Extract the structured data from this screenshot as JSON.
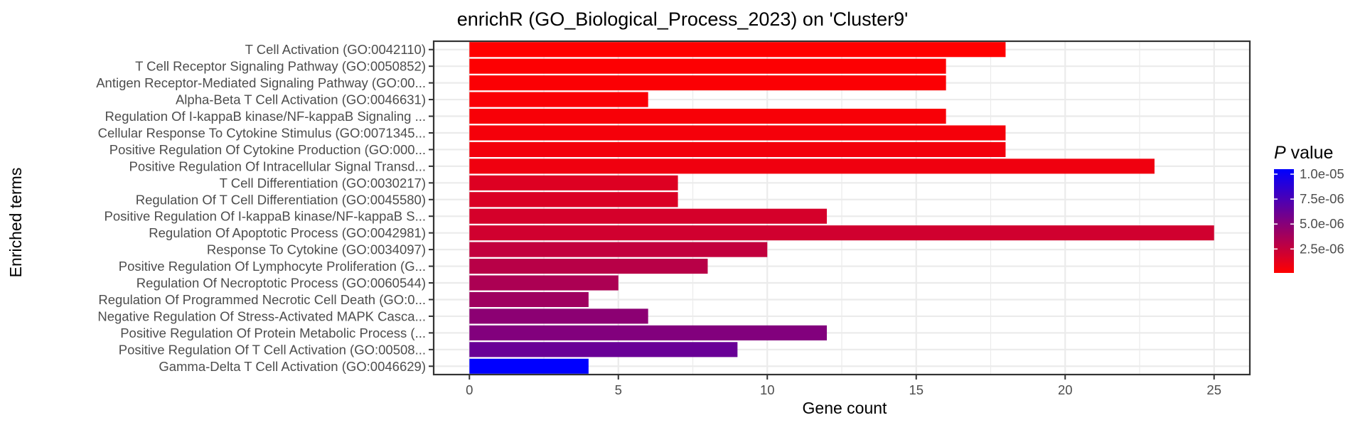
{
  "chart_data": {
    "type": "bar",
    "orientation": "horizontal",
    "title": "enrichR (GO_Biological_Process_2023) on 'Cluster9'",
    "xlabel": "Gene count",
    "ylabel": "Enriched terms",
    "xlim": [
      -1.2,
      26.2
    ],
    "xticks": [
      0,
      5,
      10,
      15,
      20,
      25
    ],
    "grid": true,
    "legend": {
      "title_italic": "P",
      "title_rest": " value",
      "position": "right",
      "labels": [
        "1.0e-05",
        "7.5e-06",
        "5.0e-06",
        "2.5e-06"
      ],
      "label_values": [
        1e-05,
        7.5e-06,
        5e-06,
        2.5e-06
      ],
      "range": [
        1e-07,
        1.05e-05
      ]
    },
    "colors": {
      "low": "#FF0000",
      "high": "#0000FF"
    },
    "categories": [
      "T Cell Activation (GO:0042110)",
      "T Cell Receptor Signaling Pathway (GO:0050852)",
      "Antigen Receptor-Mediated Signaling Pathway (GO:00...",
      "Alpha-Beta T Cell Activation (GO:0046631)",
      "Regulation Of I-kappaB kinase/NF-kappaB Signaling ...",
      "Cellular Response To Cytokine Stimulus (GO:0071345...",
      "Positive Regulation Of Cytokine Production (GO:000...",
      "Positive Regulation Of Intracellular Signal Transd...",
      "T Cell Differentiation (GO:0030217)",
      "Regulation Of T Cell Differentiation (GO:0045580)",
      "Positive Regulation Of I-kappaB kinase/NF-kappaB S...",
      "Regulation Of Apoptotic Process (GO:0042981)",
      "Response To Cytokine (GO:0034097)",
      "Positive Regulation Of Lymphocyte Proliferation (G...",
      "Regulation Of Necroptotic Process (GO:0060544)",
      "Regulation Of Programmed Necrotic Cell Death (GO:0...",
      "Negative Regulation Of Stress-Activated MAPK Casca...",
      "Positive Regulation Of Protein Metabolic Process (...",
      "Positive Regulation Of T Cell Activation (GO:00508...",
      "Gamma-Delta T Cell Activation (GO:0046629)"
    ],
    "values": [
      18,
      16,
      16,
      6,
      16,
      18,
      18,
      23,
      7,
      7,
      12,
      25,
      10,
      8,
      5,
      4,
      6,
      12,
      9,
      4
    ],
    "p_values": [
      1e-07,
      2e-07,
      2.5e-07,
      3e-07,
      4e-07,
      5e-07,
      6e-07,
      7e-07,
      1.5e-06,
      1.6e-06,
      1.8e-06,
      2e-06,
      2.6e-06,
      3e-06,
      3.5e-06,
      4e-06,
      4.8e-06,
      5.2e-06,
      6.2e-06,
      1.05e-05
    ]
  }
}
